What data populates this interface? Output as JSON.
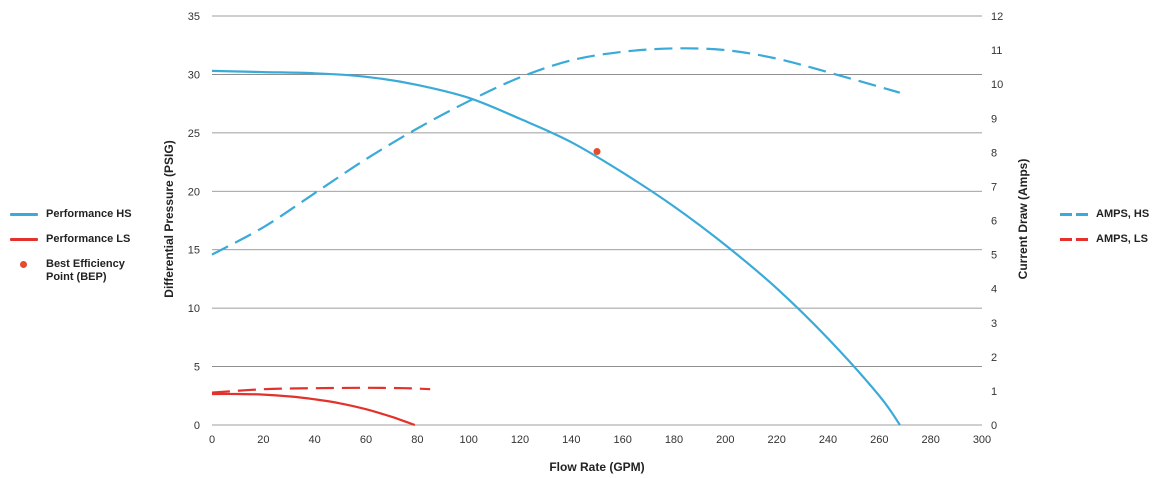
{
  "chart_data": {
    "type": "line",
    "xlabel": "Flow Rate (GPM)",
    "ylabel": "Differential Pressure (PSIG)",
    "y2label": "Current Draw (Amps)",
    "xlim": [
      0,
      300
    ],
    "ylim": [
      0,
      35
    ],
    "y2lim": [
      0,
      12
    ],
    "x_ticks": [
      0,
      20,
      40,
      60,
      80,
      100,
      120,
      140,
      160,
      180,
      200,
      220,
      240,
      260,
      280,
      300
    ],
    "y_ticks": [
      0,
      5,
      10,
      15,
      20,
      25,
      30,
      35
    ],
    "y2_ticks": [
      0,
      1,
      2,
      3,
      4,
      5,
      6,
      7,
      8,
      9,
      10,
      11,
      12
    ],
    "grid": true,
    "colors": {
      "hs": "#3aaad8",
      "ls": "#e2322b",
      "bep": "#e84a2c"
    },
    "series": [
      {
        "name": "Performance HS",
        "axis": "left",
        "style": "solid",
        "color": "#3aaad8",
        "x": [
          0,
          20,
          40,
          60,
          80,
          100,
          120,
          140,
          160,
          180,
          200,
          220,
          240,
          260,
          268
        ],
        "y": [
          30.3,
          30.2,
          30.1,
          29.8,
          29.1,
          28.0,
          26.2,
          24.2,
          21.6,
          18.7,
          15.4,
          11.7,
          7.4,
          2.5,
          0
        ]
      },
      {
        "name": "Performance LS",
        "axis": "left",
        "style": "solid",
        "color": "#e2322b",
        "x": [
          0,
          10,
          20,
          30,
          40,
          50,
          60,
          70,
          79
        ],
        "y": [
          2.65,
          2.65,
          2.6,
          2.45,
          2.2,
          1.85,
          1.35,
          0.7,
          0
        ]
      },
      {
        "name": "AMPS, HS",
        "axis": "right",
        "style": "dashed",
        "color": "#3aaad8",
        "x": [
          0,
          20,
          40,
          60,
          80,
          100,
          120,
          140,
          160,
          180,
          200,
          220,
          240,
          268
        ],
        "y": [
          5.0,
          5.8,
          6.8,
          7.8,
          8.7,
          9.5,
          10.2,
          10.7,
          10.95,
          11.05,
          11.0,
          10.75,
          10.35,
          9.75
        ]
      },
      {
        "name": "AMPS, LS",
        "axis": "right",
        "style": "dashed",
        "color": "#e2322b",
        "x": [
          0,
          20,
          40,
          60,
          75,
          85
        ],
        "y": [
          0.95,
          1.05,
          1.08,
          1.09,
          1.08,
          1.05
        ]
      }
    ],
    "bep": {
      "name": "Best Efficiency Point (BEP)",
      "x": 150,
      "y": 23.4,
      "color": "#e84a2c"
    },
    "legend_left": [
      "Performance HS",
      "Performance LS",
      "Best Efficiency Point (BEP)"
    ],
    "legend_right": [
      "AMPS, HS",
      "AMPS, LS"
    ]
  },
  "legend": {
    "left": [
      {
        "label": "Performance HS",
        "kind": "line",
        "color": "#3aaad8"
      },
      {
        "label": "Performance LS",
        "kind": "line",
        "color": "#e2322b"
      },
      {
        "label": "Best Efficiency Point (BEP)",
        "kind": "dot",
        "color": "#e84a2c"
      }
    ],
    "right": [
      {
        "label": "AMPS, HS",
        "kind": "dash",
        "color": "#3aaad8"
      },
      {
        "label": "AMPS, LS",
        "kind": "dash",
        "color": "#e2322b"
      }
    ]
  }
}
